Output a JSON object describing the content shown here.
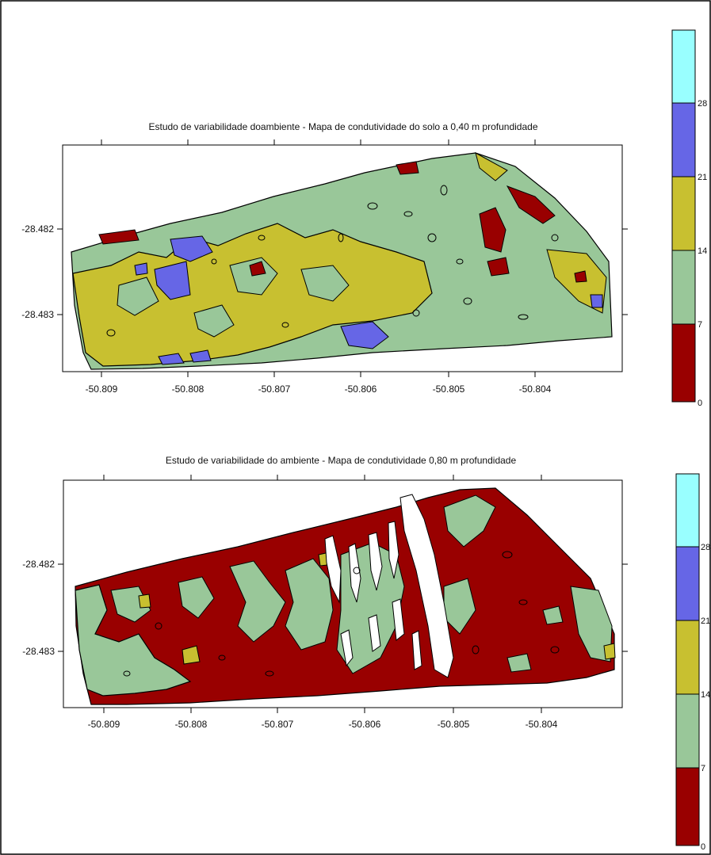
{
  "maps": [
    {
      "title": "Estudo de variabilidade doambiente - Mapa de condutividade  do solo a 0,40 m profundidade",
      "x_ticks": [
        "-50.809",
        "-50.808",
        "-50.807",
        "-50.806",
        "-50.805",
        "-50.804"
      ],
      "y_ticks": [
        "-28.482",
        "-28.483"
      ],
      "colorbar_ticks": [
        "0",
        "7",
        "14",
        "21",
        "28"
      ]
    },
    {
      "title": "Estudo de variabilidade do ambiente - Mapa de condutividade 0,80 m profundidade",
      "x_ticks": [
        "-50.809",
        "-50.808",
        "-50.807",
        "-50.806",
        "-50.805",
        "-50.804"
      ],
      "y_ticks": [
        "-28.482",
        "-28.483"
      ],
      "colorbar_ticks": [
        "0",
        "7",
        "14",
        "21",
        "28"
      ]
    }
  ],
  "legend_colors": [
    "#990000",
    "#99c799",
    "#c8c030",
    "#6666e6",
    "#99ffff"
  ]
}
